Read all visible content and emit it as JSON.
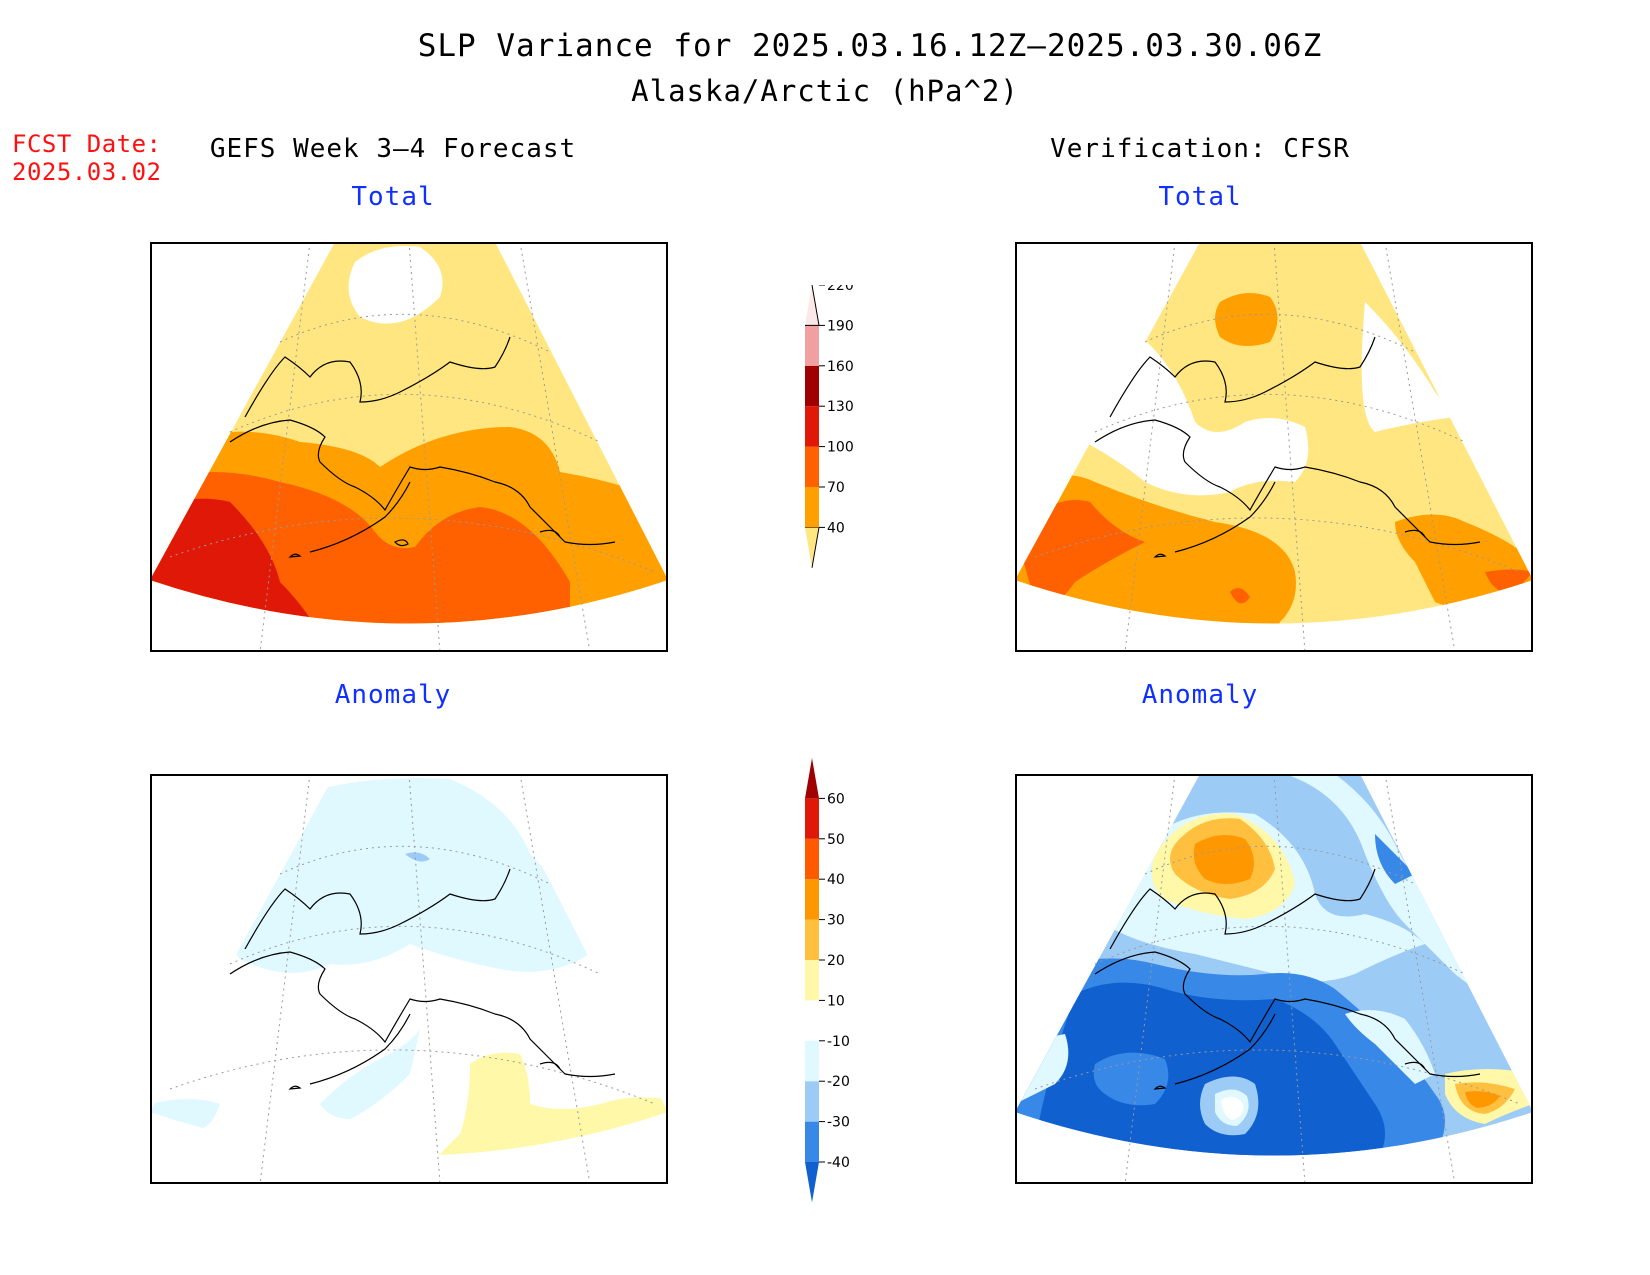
{
  "title": {
    "line1": "SLP Variance for 2025.03.16.12Z–2025.03.30.06Z",
    "line2": "Alaska/Arctic (hPa^2)"
  },
  "fcst_date": {
    "label": "FCST Date:",
    "value": "2025.03.02"
  },
  "columns": {
    "left": "GEFS Week 3–4 Forecast",
    "right": "Verification: CFSR"
  },
  "panels": {
    "total_label": "Total",
    "anomaly_label": "Anomaly"
  },
  "colorbars": {
    "total": {
      "levels": [
        "40",
        "70",
        "100",
        "130",
        "160",
        "190",
        "220"
      ],
      "colors": [
        "#ffe680",
        "#ffa000",
        "#ff6000",
        "#e01808",
        "#a00000",
        "#f0a0a0",
        "#fde8e8"
      ]
    },
    "anomaly": {
      "levels": [
        "-40",
        "-30",
        "-20",
        "-10",
        "10",
        "20",
        "30",
        "40",
        "50",
        "60"
      ],
      "colors": [
        "#1060d0",
        "#3888e8",
        "#9ccbf5",
        "#e0f8ff",
        "#ffffff",
        "#fff8a8",
        "#ffc040",
        "#ff9800",
        "#ff5a00",
        "#e01808",
        "#a00000"
      ]
    }
  }
}
